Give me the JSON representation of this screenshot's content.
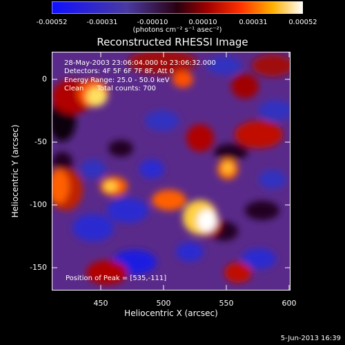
{
  "colorbar": {
    "ticks": [
      "-0.00052",
      "-0.00031",
      "-0.00010",
      "0.00010",
      "0.00031",
      "0.00052"
    ],
    "units": "(photons cm⁻² s⁻¹ asec⁻²)"
  },
  "title": "Reconstructed RHESSI Image",
  "info": {
    "line1": "28-May-2003 23:06:04.000 to 23:06:32.000",
    "line2": "Detectors: 4F 5F 6F 7F 8F, Att 0",
    "line3": "Energy Range: 25.0 - 50.0 keV",
    "line4": "Clean      Total counts: 700"
  },
  "peak": "Position of Peak = [535,-111]",
  "axes": {
    "xlabel": "Heliocentric X (arcsec)",
    "ylabel": "Heliocentric Y (arcsec)",
    "xticks": [
      "450",
      "500",
      "550",
      "600"
    ],
    "yticks": [
      "0",
      "-50",
      "-100",
      "-150"
    ]
  },
  "date": "5-Jun-2013 16:39"
}
